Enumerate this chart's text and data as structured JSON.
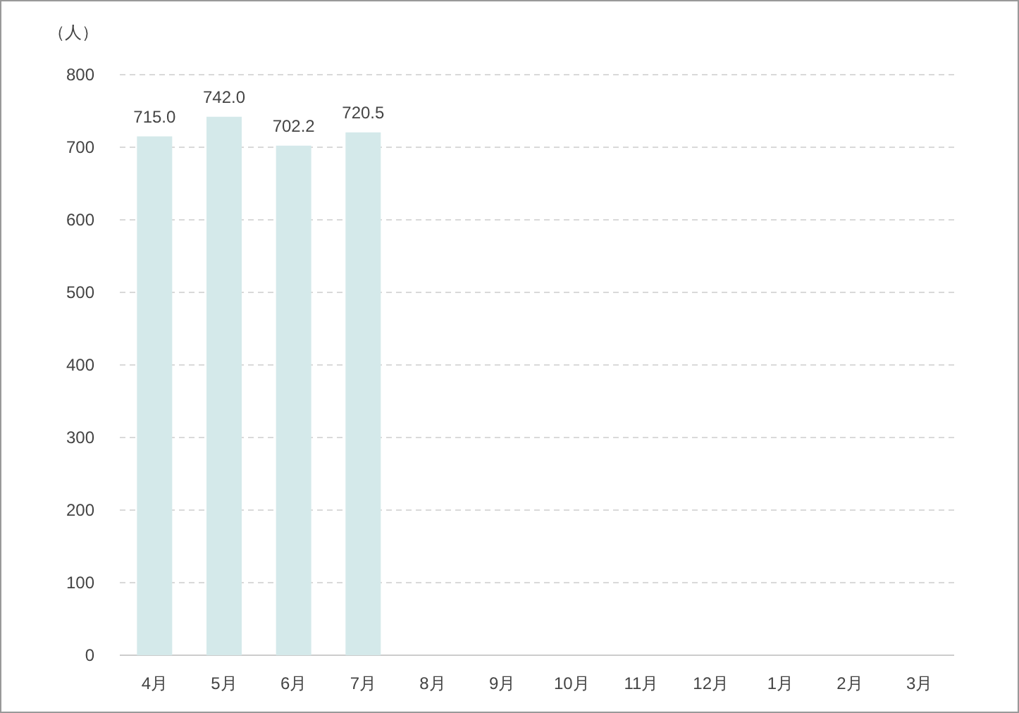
{
  "chart_data": {
    "type": "bar",
    "ylabel": "（人）",
    "categories": [
      "4月",
      "5月",
      "6月",
      "7月",
      "8月",
      "9月",
      "10月",
      "11月",
      "12月",
      "1月",
      "2月",
      "3月"
    ],
    "values": [
      715.0,
      742.0,
      702.2,
      720.5,
      null,
      null,
      null,
      null,
      null,
      null,
      null,
      null
    ],
    "value_labels": [
      "715.0",
      "742.0",
      "702.2",
      "720.5",
      null,
      null,
      null,
      null,
      null,
      null,
      null,
      null
    ],
    "color": "#d4e9ea",
    "ylim": [
      0,
      800
    ],
    "yticks": [
      0,
      100,
      200,
      300,
      400,
      500,
      600,
      700,
      800
    ],
    "grid": "y"
  }
}
